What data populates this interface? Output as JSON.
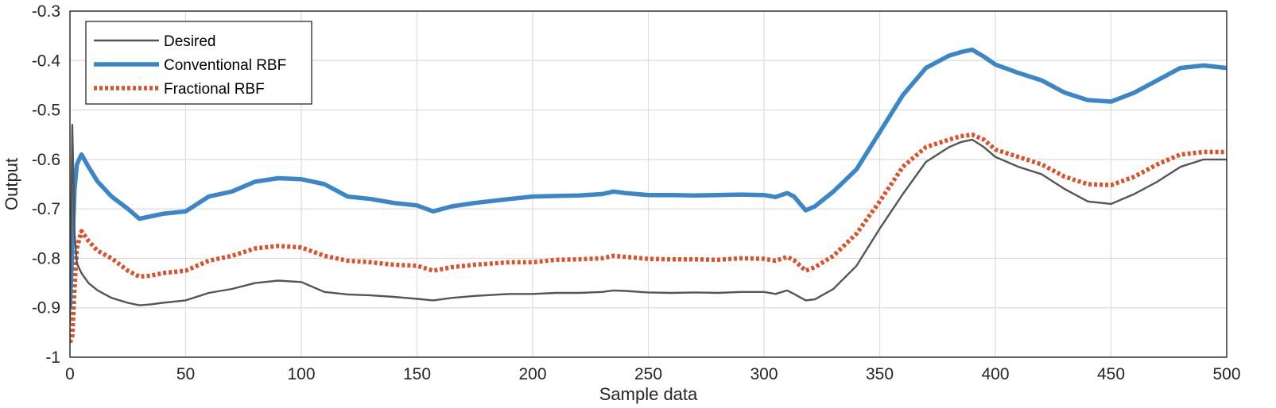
{
  "chart_data": {
    "type": "line",
    "title": "",
    "xlabel": "Sample data",
    "ylabel": "Output",
    "xlim": [
      0,
      500
    ],
    "ylim": [
      -1,
      -0.3
    ],
    "xticks": [
      0,
      50,
      100,
      150,
      200,
      250,
      300,
      350,
      400,
      450,
      500
    ],
    "yticks": [
      -1,
      -0.9,
      -0.8,
      -0.7,
      -0.6,
      -0.5,
      -0.4,
      -0.3
    ],
    "ytick_labels": [
      "-1",
      "-0.9",
      "-0.8",
      "-0.7",
      "-0.6",
      "-0.5",
      "-0.4",
      "-0.3"
    ],
    "grid": true,
    "legend_position": "top-left",
    "series": [
      {
        "name": "Desired",
        "color": "#555555",
        "style": "solid",
        "x": [
          0,
          1,
          2,
          3,
          5,
          8,
          12,
          18,
          25,
          30,
          35,
          40,
          50,
          60,
          70,
          80,
          90,
          100,
          110,
          120,
          130,
          140,
          150,
          157,
          165,
          175,
          190,
          200,
          210,
          220,
          230,
          235,
          240,
          250,
          260,
          270,
          280,
          290,
          300,
          305,
          310,
          313,
          318,
          322,
          330,
          340,
          350,
          360,
          370,
          380,
          385,
          390,
          395,
          400,
          410,
          420,
          430,
          440,
          450,
          460,
          470,
          480,
          490,
          500
        ],
        "y": [
          -0.93,
          -0.53,
          -0.75,
          -0.81,
          -0.83,
          -0.85,
          -0.865,
          -0.88,
          -0.89,
          -0.895,
          -0.893,
          -0.89,
          -0.885,
          -0.87,
          -0.862,
          -0.85,
          -0.845,
          -0.848,
          -0.868,
          -0.873,
          -0.875,
          -0.878,
          -0.882,
          -0.885,
          -0.88,
          -0.876,
          -0.872,
          -0.872,
          -0.87,
          -0.87,
          -0.868,
          -0.865,
          -0.866,
          -0.869,
          -0.87,
          -0.869,
          -0.87,
          -0.868,
          -0.868,
          -0.872,
          -0.865,
          -0.872,
          -0.885,
          -0.883,
          -0.862,
          -0.815,
          -0.74,
          -0.67,
          -0.605,
          -0.575,
          -0.565,
          -0.56,
          -0.575,
          -0.595,
          -0.615,
          -0.63,
          -0.66,
          -0.685,
          -0.69,
          -0.67,
          -0.645,
          -0.615,
          -0.6,
          -0.6
        ]
      },
      {
        "name": "Conventional RBF",
        "color": "#3a86c8",
        "style": "solid",
        "x": [
          0,
          1,
          2,
          3,
          5,
          8,
          12,
          18,
          25,
          30,
          35,
          40,
          50,
          60,
          70,
          80,
          90,
          100,
          110,
          120,
          130,
          140,
          150,
          157,
          165,
          175,
          190,
          200,
          210,
          220,
          230,
          235,
          240,
          250,
          260,
          270,
          280,
          290,
          300,
          305,
          310,
          313,
          318,
          322,
          330,
          340,
          350,
          360,
          370,
          380,
          385,
          390,
          395,
          400,
          410,
          420,
          430,
          440,
          450,
          460,
          470,
          480,
          490,
          500
        ],
        "y": [
          -0.9,
          -0.78,
          -0.66,
          -0.61,
          -0.59,
          -0.615,
          -0.645,
          -0.675,
          -0.7,
          -0.72,
          -0.715,
          -0.71,
          -0.705,
          -0.675,
          -0.665,
          -0.645,
          -0.638,
          -0.64,
          -0.65,
          -0.675,
          -0.68,
          -0.688,
          -0.693,
          -0.705,
          -0.695,
          -0.688,
          -0.68,
          -0.675,
          -0.674,
          -0.673,
          -0.67,
          -0.665,
          -0.668,
          -0.672,
          -0.672,
          -0.673,
          -0.672,
          -0.671,
          -0.672,
          -0.676,
          -0.668,
          -0.675,
          -0.703,
          -0.695,
          -0.665,
          -0.62,
          -0.545,
          -0.47,
          -0.415,
          -0.39,
          -0.383,
          -0.378,
          -0.392,
          -0.408,
          -0.425,
          -0.44,
          -0.465,
          -0.48,
          -0.483,
          -0.465,
          -0.44,
          -0.415,
          -0.41,
          -0.415
        ]
      },
      {
        "name": "Fractional RBF",
        "color": "#d9532b",
        "style": "dotted",
        "x": [
          0,
          1,
          2,
          3,
          5,
          8,
          12,
          18,
          25,
          30,
          35,
          40,
          50,
          60,
          70,
          80,
          90,
          100,
          110,
          120,
          130,
          140,
          150,
          157,
          165,
          175,
          190,
          200,
          210,
          220,
          230,
          235,
          240,
          250,
          260,
          270,
          280,
          290,
          300,
          305,
          310,
          313,
          318,
          322,
          330,
          340,
          350,
          360,
          370,
          380,
          385,
          390,
          395,
          400,
          410,
          420,
          430,
          440,
          450,
          460,
          470,
          480,
          490,
          500
        ],
        "y": [
          -0.97,
          -0.96,
          -0.86,
          -0.78,
          -0.745,
          -0.765,
          -0.785,
          -0.8,
          -0.825,
          -0.837,
          -0.835,
          -0.83,
          -0.825,
          -0.805,
          -0.795,
          -0.78,
          -0.775,
          -0.778,
          -0.795,
          -0.805,
          -0.808,
          -0.813,
          -0.815,
          -0.825,
          -0.818,
          -0.813,
          -0.808,
          -0.808,
          -0.803,
          -0.802,
          -0.8,
          -0.795,
          -0.797,
          -0.801,
          -0.802,
          -0.802,
          -0.803,
          -0.8,
          -0.801,
          -0.805,
          -0.797,
          -0.804,
          -0.825,
          -0.818,
          -0.795,
          -0.75,
          -0.685,
          -0.615,
          -0.575,
          -0.56,
          -0.553,
          -0.55,
          -0.56,
          -0.58,
          -0.595,
          -0.61,
          -0.635,
          -0.65,
          -0.652,
          -0.635,
          -0.61,
          -0.59,
          -0.585,
          -0.585
        ]
      }
    ]
  }
}
